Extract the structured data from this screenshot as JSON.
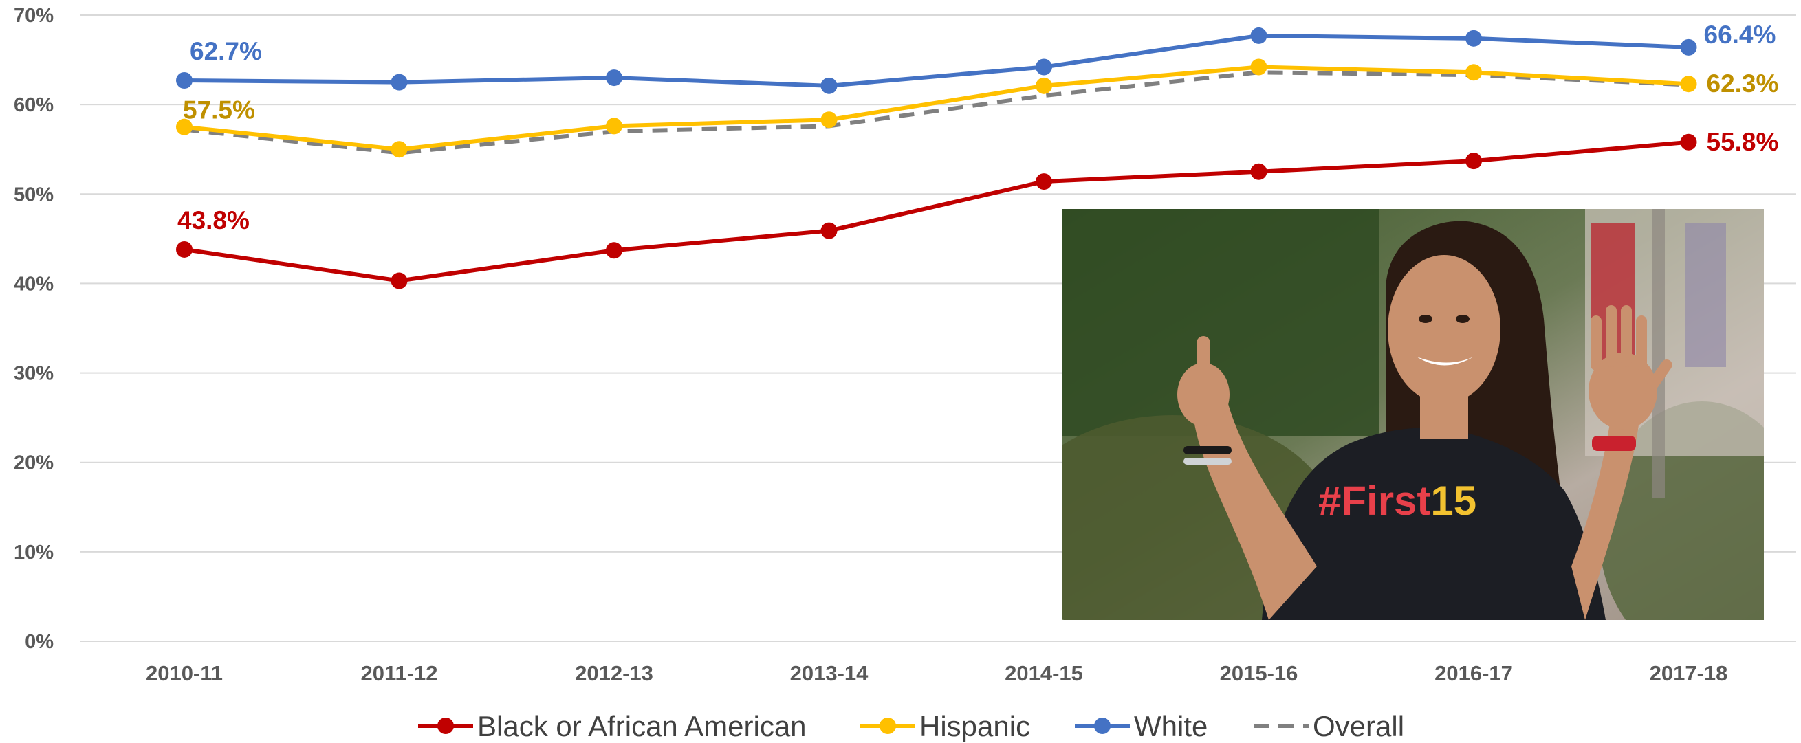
{
  "chart_data": {
    "type": "line",
    "title": "",
    "xlabel": "",
    "ylabel": "",
    "categories": [
      "2010-11",
      "2011-12",
      "2012-13",
      "2013-14",
      "2014-15",
      "2015-16",
      "2016-17",
      "2017-18"
    ],
    "ylim": [
      0,
      70
    ],
    "yticks": [
      "0%",
      "10%",
      "20%",
      "30%",
      "40%",
      "50%",
      "60%",
      "70%"
    ],
    "grid": "horizontal",
    "legend_position": "bottom",
    "series": [
      {
        "name": "Black or African American",
        "color": "#C00000",
        "style": "solid",
        "markers": true,
        "values": [
          43.8,
          40.3,
          43.7,
          45.9,
          51.4,
          52.5,
          53.7,
          55.8
        ],
        "labels": [
          {
            "index": 0,
            "text": "43.8%"
          },
          {
            "index": 7,
            "text": "55.8%"
          }
        ]
      },
      {
        "name": "Hispanic",
        "color": "#FFC000",
        "label_color": "#BF9000",
        "style": "solid",
        "markers": true,
        "values": [
          57.5,
          55.0,
          57.6,
          58.3,
          62.1,
          64.2,
          63.6,
          62.3
        ],
        "labels": [
          {
            "index": 0,
            "text": "57.5%"
          },
          {
            "index": 7,
            "text": "62.3%"
          }
        ]
      },
      {
        "name": "White",
        "color": "#4472C4",
        "style": "solid",
        "markers": true,
        "values": [
          62.7,
          62.5,
          63.0,
          62.1,
          64.2,
          67.7,
          67.4,
          66.4
        ],
        "labels": [
          {
            "index": 0,
            "text": "62.7%"
          },
          {
            "index": 7,
            "text": "66.4%"
          }
        ]
      },
      {
        "name": "Overall",
        "color": "#808080",
        "style": "dashed",
        "markers": false,
        "values": [
          57.2,
          54.6,
          57.0,
          57.6,
          61.0,
          63.6,
          63.3,
          62.2
        ],
        "labels": []
      }
    ]
  },
  "inset_photo": {
    "shirt_text": "#First15",
    "colors": {
      "shirt": "#1c1e24",
      "text_red": "#E8404A",
      "text_yellow": "#F2C230",
      "hair": "#2a1a12",
      "skin": "#c9916e"
    }
  }
}
